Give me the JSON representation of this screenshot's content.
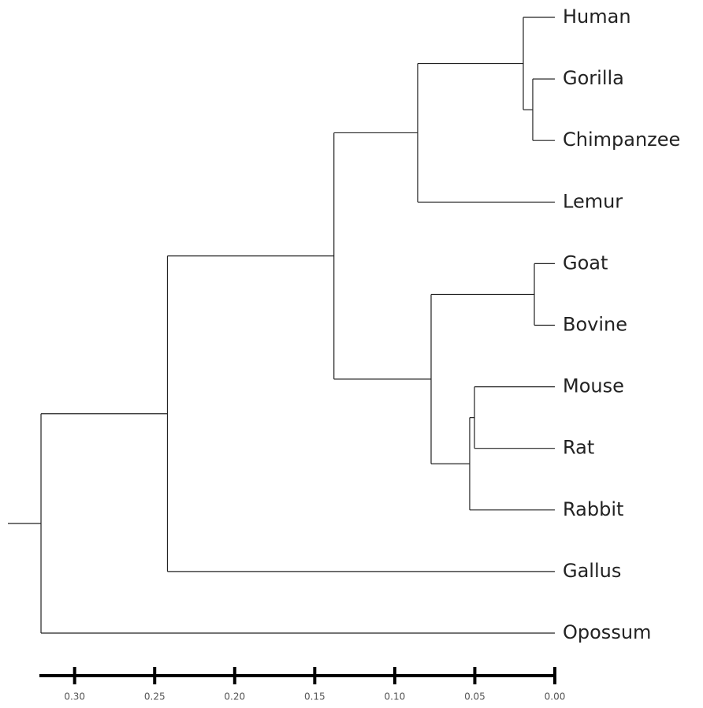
{
  "chart_data": {
    "type": "dendrogram",
    "tree": {
      "height": 0.321,
      "children": [
        {
          "height": 0.242,
          "children": [
            {
              "height": 0.138,
              "children": [
                {
                  "height": 0.0857,
                  "children": [
                    {
                      "height": 0.0197,
                      "children": [
                        {
                          "name": "Human"
                        },
                        {
                          "height": 0.0138,
                          "children": [
                            {
                              "name": "Gorilla"
                            },
                            {
                              "name": "Chimpanzee"
                            }
                          ]
                        }
                      ]
                    },
                    {
                      "name": "Lemur"
                    }
                  ]
                },
                {
                  "height": 0.0773,
                  "children": [
                    {
                      "height": 0.0128,
                      "children": [
                        {
                          "name": "Goat"
                        },
                        {
                          "name": "Bovine"
                        }
                      ]
                    },
                    {
                      "height": 0.0532,
                      "children": [
                        {
                          "height": 0.0502,
                          "children": [
                            {
                              "name": "Mouse"
                            },
                            {
                              "name": "Rat"
                            }
                          ]
                        },
                        {
                          "name": "Rabbit"
                        }
                      ]
                    }
                  ]
                }
              ]
            },
            {
              "name": "Gallus"
            }
          ]
        },
        {
          "name": "Opossum"
        }
      ]
    },
    "xlim": [
      0.322,
      0
    ],
    "xticks": [
      {
        "value": 0.3,
        "label": "0.30"
      },
      {
        "value": 0.25,
        "label": "0.25"
      },
      {
        "value": 0.2,
        "label": "0.20"
      },
      {
        "value": 0.15,
        "label": "0.15"
      },
      {
        "value": 0.1,
        "label": "0.10"
      },
      {
        "value": 0.05,
        "label": "0.05"
      },
      {
        "value": 0,
        "label": "0.00"
      }
    ]
  }
}
